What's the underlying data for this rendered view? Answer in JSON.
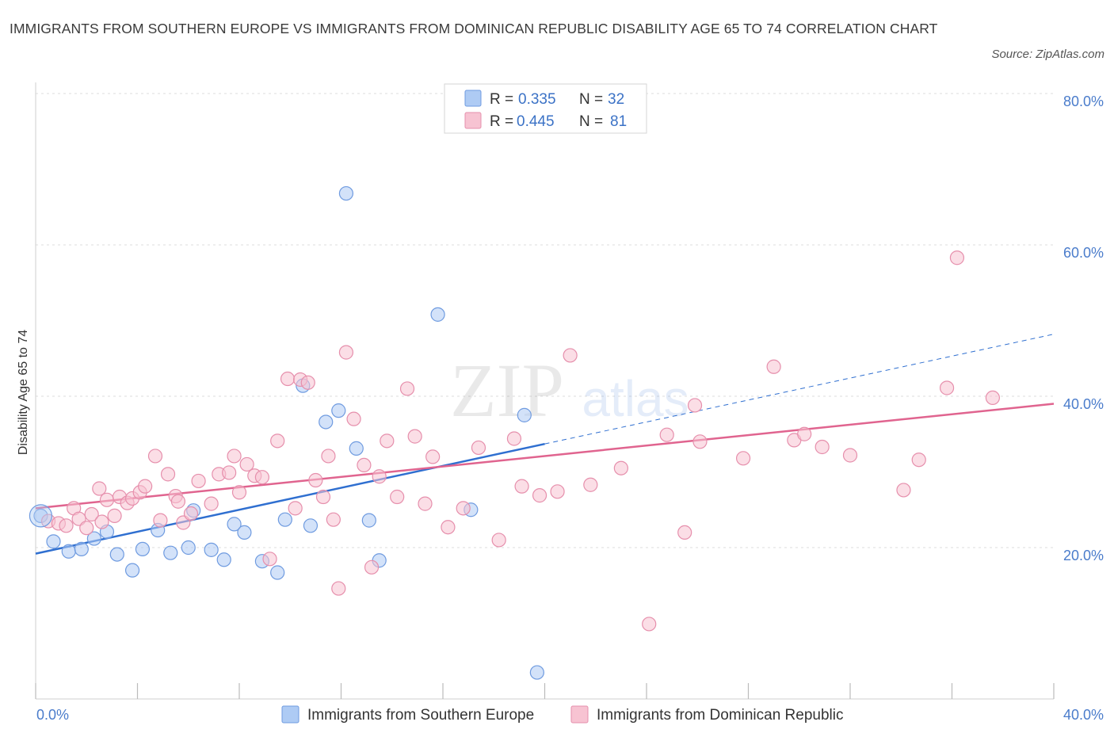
{
  "title": "IMMIGRANTS FROM SOUTHERN EUROPE VS IMMIGRANTS FROM DOMINICAN REPUBLIC DISABILITY AGE 65 TO 74 CORRELATION CHART",
  "source": "Source: ZipAtlas.com",
  "watermark": {
    "zip": "ZIP",
    "atlas": "atlas"
  },
  "legend": {
    "rows": [
      {
        "r_label": "R =",
        "r_value": "0.335",
        "n_label": "N =",
        "n_value": "32",
        "color": "#aecbf4",
        "border": "#6f9be0"
      },
      {
        "r_label": "R =",
        "r_value": "0.445",
        "n_label": "N =",
        "n_value": "81",
        "color": "#f7c3d2",
        "border": "#e68fac"
      }
    ]
  },
  "bottom_legend": [
    {
      "label": "Immigrants from Southern Europe",
      "color": "#aecbf4",
      "border": "#6f9be0"
    },
    {
      "label": "Immigrants from Dominican Republic",
      "color": "#f7c3d2",
      "border": "#e68fac"
    }
  ],
  "chart_data": {
    "type": "scatter",
    "xlabel": "",
    "ylabel": "Disability Age 65 to 74",
    "xlim": [
      0,
      40
    ],
    "ylim": [
      0,
      80
    ],
    "x_tick_labels": [
      "0.0%",
      "40.0%"
    ],
    "y_tick_labels": [
      "20.0%",
      "40.0%",
      "60.0%",
      "80.0%"
    ],
    "y_tick_values": [
      20,
      40,
      60,
      80
    ],
    "grid": true,
    "series": [
      {
        "name": "Immigrants from Southern Europe",
        "color": "#6f9be0",
        "fill": "#aecbf4",
        "line_color": "#2f6fd0",
        "trend": {
          "x": [
            0,
            20
          ],
          "y": [
            19.2,
            33.7
          ],
          "dashed_to": [
            40,
            48.2
          ]
        },
        "points": [
          [
            0.2,
            24.2
          ],
          [
            0.7,
            20.8
          ],
          [
            1.3,
            19.5
          ],
          [
            1.8,
            19.8
          ],
          [
            2.3,
            21.2
          ],
          [
            2.8,
            22.1
          ],
          [
            3.2,
            19.1
          ],
          [
            3.8,
            17.0
          ],
          [
            4.2,
            19.8
          ],
          [
            4.8,
            22.3
          ],
          [
            5.3,
            19.3
          ],
          [
            6.0,
            20.0
          ],
          [
            6.2,
            24.9
          ],
          [
            6.9,
            19.7
          ],
          [
            7.4,
            18.4
          ],
          [
            7.8,
            23.1
          ],
          [
            8.2,
            22.0
          ],
          [
            8.9,
            18.2
          ],
          [
            9.5,
            16.7
          ],
          [
            9.8,
            23.7
          ],
          [
            10.5,
            41.4
          ],
          [
            10.8,
            22.9
          ],
          [
            11.4,
            36.6
          ],
          [
            11.9,
            38.1
          ],
          [
            12.2,
            66.8
          ],
          [
            12.6,
            33.1
          ],
          [
            13.1,
            23.6
          ],
          [
            13.5,
            18.3
          ],
          [
            15.8,
            50.8
          ],
          [
            17.1,
            25.0
          ],
          [
            19.2,
            37.5
          ],
          [
            19.7,
            3.5
          ]
        ]
      },
      {
        "name": "Immigrants from Dominican Republic",
        "color": "#e68fac",
        "fill": "#f7c3d2",
        "line_color": "#e0648f",
        "trend": {
          "x": [
            0,
            40
          ],
          "y": [
            25.2,
            39.0
          ]
        },
        "points": [
          [
            0.5,
            23.5
          ],
          [
            0.9,
            23.2
          ],
          [
            1.2,
            22.9
          ],
          [
            1.5,
            25.2
          ],
          [
            1.7,
            23.8
          ],
          [
            2.0,
            22.6
          ],
          [
            2.2,
            24.4
          ],
          [
            2.5,
            27.8
          ],
          [
            2.8,
            26.3
          ],
          [
            3.1,
            24.2
          ],
          [
            3.3,
            26.7
          ],
          [
            3.6,
            25.9
          ],
          [
            3.8,
            26.5
          ],
          [
            4.1,
            27.3
          ],
          [
            4.3,
            28.1
          ],
          [
            4.7,
            32.1
          ],
          [
            4.9,
            23.6
          ],
          [
            5.2,
            29.7
          ],
          [
            5.5,
            26.8
          ],
          [
            5.8,
            23.3
          ],
          [
            6.1,
            24.5
          ],
          [
            6.4,
            28.8
          ],
          [
            6.9,
            25.8
          ],
          [
            7.2,
            29.7
          ],
          [
            7.6,
            29.9
          ],
          [
            7.8,
            32.1
          ],
          [
            8.0,
            27.3
          ],
          [
            8.3,
            31.0
          ],
          [
            8.6,
            29.5
          ],
          [
            8.9,
            29.3
          ],
          [
            9.2,
            18.5
          ],
          [
            9.5,
            34.1
          ],
          [
            9.9,
            42.3
          ],
          [
            10.2,
            25.2
          ],
          [
            10.4,
            42.2
          ],
          [
            10.7,
            41.8
          ],
          [
            11.0,
            28.9
          ],
          [
            11.3,
            26.7
          ],
          [
            11.5,
            32.1
          ],
          [
            11.7,
            23.7
          ],
          [
            11.9,
            14.6
          ],
          [
            12.2,
            45.8
          ],
          [
            12.5,
            37.0
          ],
          [
            12.9,
            30.9
          ],
          [
            13.2,
            17.4
          ],
          [
            13.5,
            29.4
          ],
          [
            13.8,
            34.1
          ],
          [
            14.2,
            26.7
          ],
          [
            14.6,
            41.0
          ],
          [
            14.9,
            34.7
          ],
          [
            15.3,
            25.8
          ],
          [
            15.6,
            32.0
          ],
          [
            16.2,
            22.7
          ],
          [
            16.8,
            25.2
          ],
          [
            17.4,
            33.2
          ],
          [
            18.2,
            21.0
          ],
          [
            18.8,
            34.4
          ],
          [
            19.1,
            28.1
          ],
          [
            19.8,
            26.9
          ],
          [
            20.5,
            27.4
          ],
          [
            21.0,
            45.4
          ],
          [
            21.8,
            28.3
          ],
          [
            24.1,
            9.9
          ],
          [
            24.8,
            34.9
          ],
          [
            25.5,
            22.0
          ],
          [
            25.9,
            38.8
          ],
          [
            26.1,
            34.0
          ],
          [
            27.8,
            31.8
          ],
          [
            29.0,
            43.9
          ],
          [
            29.8,
            34.2
          ],
          [
            30.2,
            35.0
          ],
          [
            30.9,
            33.3
          ],
          [
            32.0,
            32.2
          ],
          [
            34.1,
            27.6
          ],
          [
            34.7,
            31.6
          ],
          [
            35.8,
            41.1
          ],
          [
            36.2,
            58.3
          ],
          [
            37.6,
            39.8
          ],
          [
            2.6,
            23.4
          ],
          [
            5.6,
            26.1
          ],
          [
            23.0,
            30.5
          ]
        ]
      }
    ]
  }
}
